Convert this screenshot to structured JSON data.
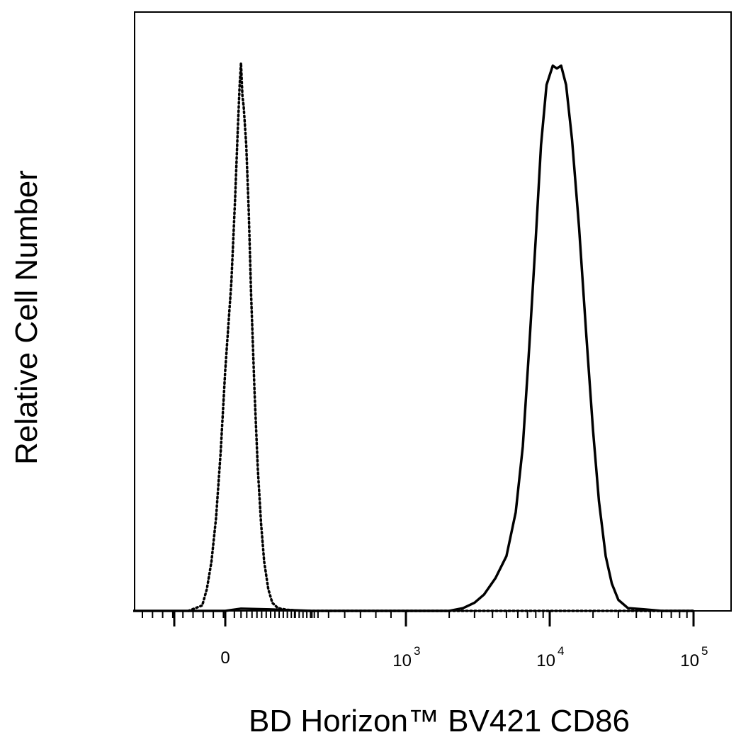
{
  "chart_data": {
    "type": "line",
    "xlabel": "BD Horizon™ BV421 CD86",
    "ylabel": "Relative Cell Number",
    "x_scale": "biexponential",
    "xlim": [
      -200,
      100000
    ],
    "ylim": [
      0,
      100
    ],
    "grid": false,
    "legend": "none",
    "x_ticks": [
      {
        "value": 0,
        "label": "0"
      },
      {
        "value": 1000,
        "base": "10",
        "exp": "3"
      },
      {
        "value": 10000,
        "base": "10",
        "exp": "4"
      },
      {
        "value": 100000,
        "base": "10",
        "exp": "5"
      }
    ],
    "series": [
      {
        "style": "dotted",
        "color": "#000000",
        "points": [
          [
            -80,
            0
          ],
          [
            -50,
            1
          ],
          [
            -40,
            4
          ],
          [
            -30,
            9
          ],
          [
            -20,
            17
          ],
          [
            -10,
            29
          ],
          [
            0,
            44
          ],
          [
            10,
            60
          ],
          [
            20,
            75
          ],
          [
            28,
            87
          ],
          [
            35,
            96
          ],
          [
            40,
            100
          ],
          [
            45,
            94
          ],
          [
            50,
            92
          ],
          [
            60,
            85
          ],
          [
            70,
            73
          ],
          [
            80,
            58
          ],
          [
            95,
            40
          ],
          [
            110,
            26
          ],
          [
            125,
            16
          ],
          [
            140,
            9
          ],
          [
            160,
            4
          ],
          [
            180,
            1.5
          ],
          [
            210,
            0.5
          ],
          [
            260,
            0.2
          ],
          [
            350,
            0
          ],
          [
            1000,
            0
          ],
          [
            100000,
            0
          ]
        ]
      },
      {
        "style": "solid",
        "color": "#000000",
        "points": [
          [
            -200,
            0
          ],
          [
            0,
            0
          ],
          [
            40,
            0.4
          ],
          [
            150,
            0.3
          ],
          [
            400,
            0
          ],
          [
            2000,
            0
          ],
          [
            2500,
            0.5
          ],
          [
            3000,
            1.5
          ],
          [
            3500,
            3
          ],
          [
            4200,
            6
          ],
          [
            5000,
            10
          ],
          [
            5800,
            18
          ],
          [
            6500,
            30
          ],
          [
            7200,
            48
          ],
          [
            8000,
            68
          ],
          [
            8700,
            85
          ],
          [
            9500,
            96
          ],
          [
            10500,
            99.5
          ],
          [
            11200,
            99
          ],
          [
            12000,
            99.5
          ],
          [
            13000,
            96
          ],
          [
            14300,
            86
          ],
          [
            16000,
            70
          ],
          [
            18000,
            50
          ],
          [
            20000,
            33
          ],
          [
            22000,
            20
          ],
          [
            24500,
            10
          ],
          [
            27000,
            5
          ],
          [
            30000,
            2
          ],
          [
            35000,
            0.5
          ],
          [
            45000,
            0.3
          ],
          [
            60000,
            0
          ],
          [
            100000,
            0
          ]
        ]
      }
    ]
  }
}
